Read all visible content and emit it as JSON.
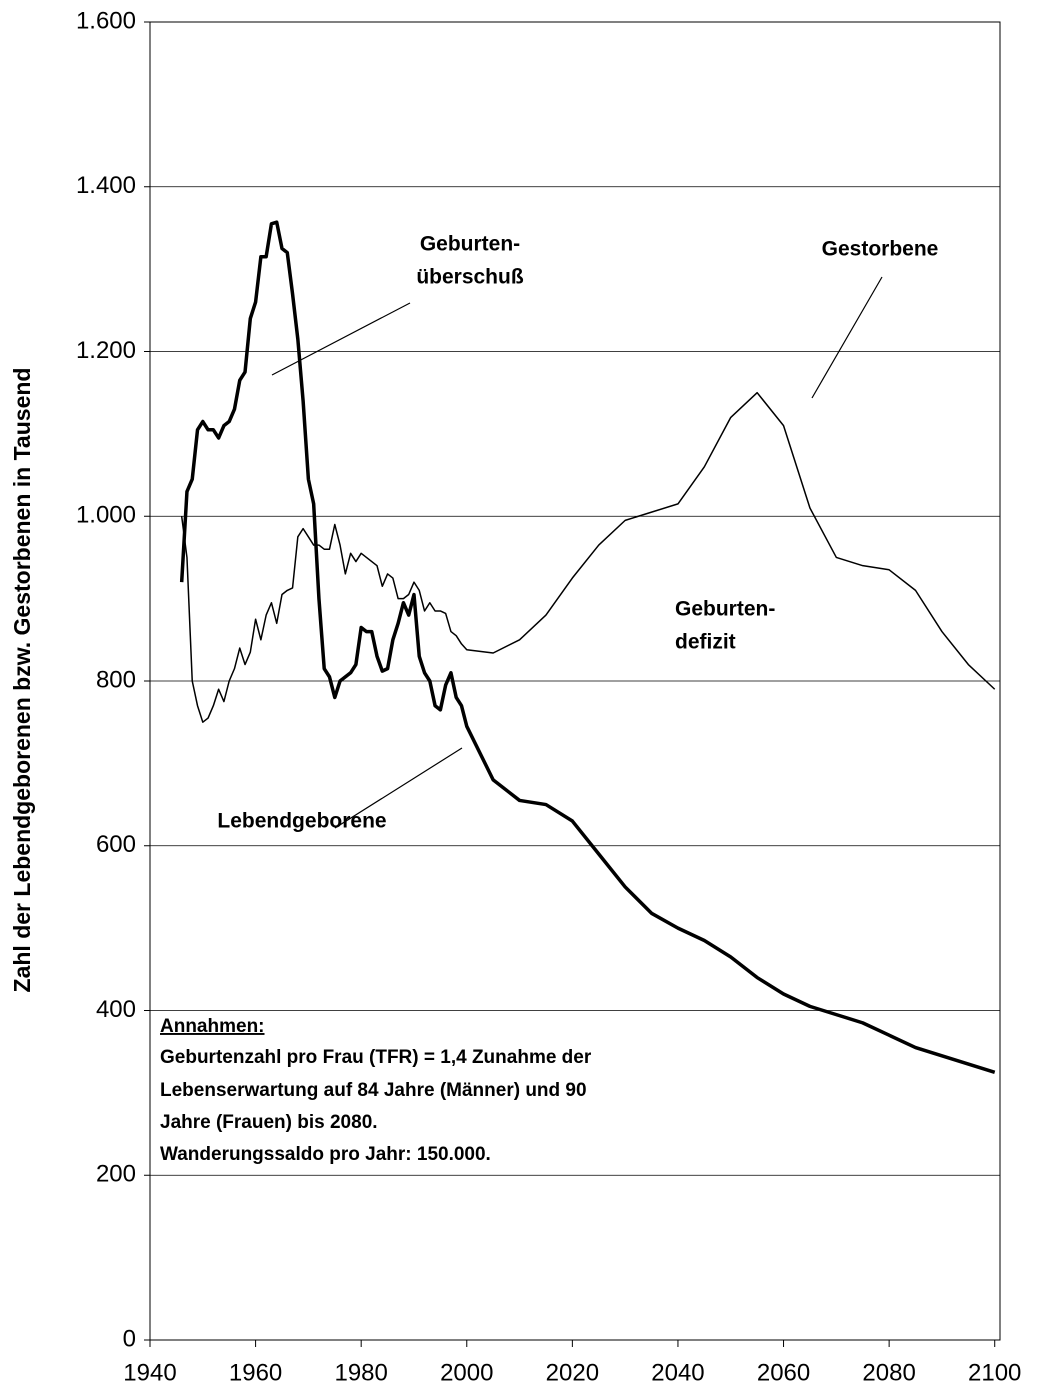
{
  "chart_data": {
    "type": "line",
    "y_label": "Zahl der Lebendgeborenen bzw. Gestorbenen in Tausend",
    "x": [
      1946,
      1947,
      1948,
      1949,
      1950,
      1951,
      1952,
      1953,
      1954,
      1955,
      1956,
      1957,
      1958,
      1959,
      1960,
      1961,
      1962,
      1963,
      1964,
      1965,
      1966,
      1967,
      1968,
      1969,
      1970,
      1971,
      1972,
      1973,
      1974,
      1975,
      1976,
      1977,
      1978,
      1979,
      1980,
      1981,
      1982,
      1983,
      1984,
      1985,
      1986,
      1987,
      1988,
      1989,
      1990,
      1991,
      1992,
      1993,
      1994,
      1995,
      1996,
      1997,
      1998,
      1999,
      2000,
      2005,
      2010,
      2015,
      2020,
      2025,
      2030,
      2035,
      2040,
      2045,
      2050,
      2055,
      2060,
      2065,
      2070,
      2075,
      2080,
      2085,
      2090,
      2095,
      2100
    ],
    "series": [
      {
        "name": "Lebendgeborene",
        "color": "#000000",
        "width": 3.5,
        "values": [
          920,
          1030,
          1045,
          1105,
          1115,
          1105,
          1105,
          1095,
          1110,
          1115,
          1130,
          1165,
          1175,
          1240,
          1260,
          1315,
          1315,
          1355,
          1357,
          1325,
          1320,
          1270,
          1215,
          1140,
          1045,
          1015,
          900,
          815,
          805,
          780,
          800,
          805,
          810,
          820,
          865,
          860,
          860,
          830,
          812,
          815,
          850,
          870,
          895,
          880,
          905,
          830,
          810,
          800,
          770,
          765,
          795,
          810,
          780,
          770,
          745,
          680,
          655,
          650,
          630,
          590,
          550,
          518,
          500,
          485,
          465,
          440,
          420,
          405,
          395,
          385,
          370,
          355,
          345,
          335,
          325
        ]
      },
      {
        "name": "Gestorbene",
        "color": "#000000",
        "width": 1.5,
        "values": [
          1000,
          950,
          800,
          770,
          750,
          755,
          770,
          790,
          775,
          800,
          815,
          840,
          820,
          835,
          875,
          850,
          880,
          895,
          870,
          905,
          910,
          913,
          975,
          985,
          975,
          965,
          965,
          960,
          960,
          990,
          965,
          930,
          955,
          945,
          955,
          950,
          945,
          940,
          915,
          930,
          925,
          900,
          900,
          905,
          920,
          910,
          885,
          895,
          885,
          885,
          882,
          860,
          855,
          845,
          838,
          834,
          850,
          880,
          925,
          965,
          995,
          1005,
          1015,
          1060,
          1120,
          1150,
          1110,
          1010,
          950,
          940,
          935,
          910,
          860,
          820,
          790
        ]
      }
    ],
    "xlim": [
      1940,
      2101
    ],
    "xticks": [
      1940,
      1960,
      1980,
      2000,
      2020,
      2040,
      2060,
      2080,
      2100
    ],
    "ylim": [
      0,
      1600
    ],
    "yticks": [
      0,
      200,
      400,
      600,
      800,
      {
        "value": 1000,
        "label": "1.000"
      },
      {
        "value": 1200,
        "label": "1.200"
      },
      {
        "value": 1400,
        "label": "1.400"
      },
      {
        "value": 1600,
        "label": "1.600"
      }
    ],
    "grid": true,
    "annotations": {
      "surplus": [
        "Geburten-",
        "überschuß"
      ],
      "deficit": [
        "Geburten-",
        "defizit"
      ]
    },
    "assumptions": {
      "heading": "Annahmen:",
      "lines": [
        "Geburtenzahl pro Frau (TFR) = 1,4 Zunahme der",
        "Lebenserwartung auf 84 Jahre (Männer) und 90",
        "Jahre (Frauen) bis 2080.",
        "Wanderungssaldo pro Jahr: 150.000."
      ]
    }
  }
}
